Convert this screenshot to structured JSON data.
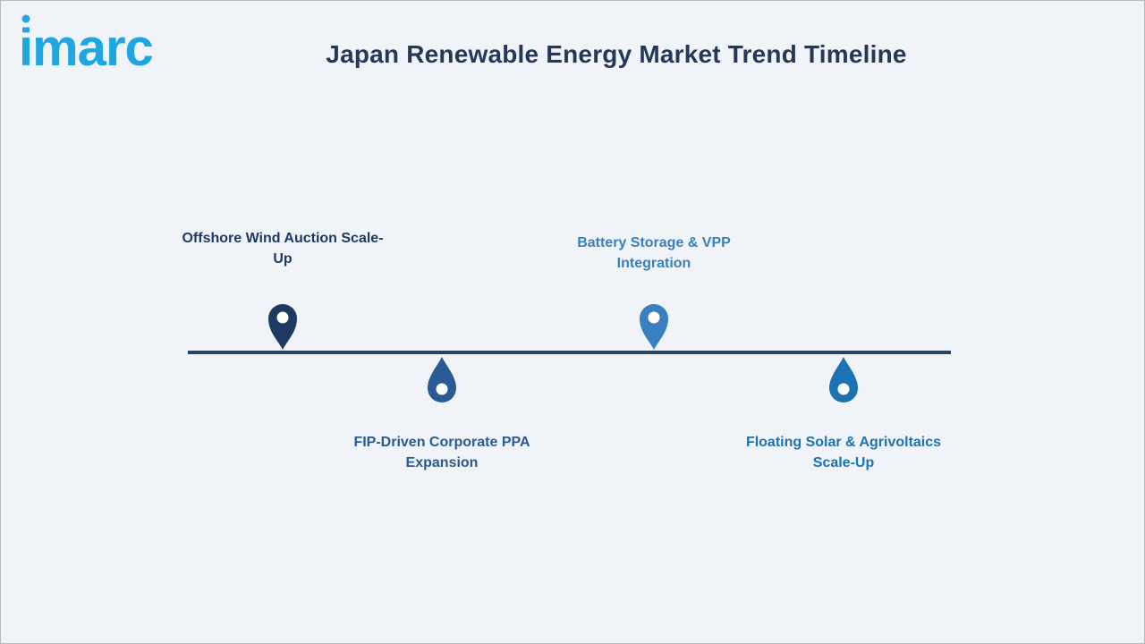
{
  "logo": {
    "text": "imarc",
    "color": "#1fa6e0"
  },
  "title": "Japan Renewable Energy Market Trend Timeline",
  "timeline": {
    "line_color": "#27435f",
    "milestones": [
      {
        "label": "Offshore Wind Auction Scale-Up",
        "color": "#1e3a63",
        "position": "above",
        "icon": "map-pin-icon"
      },
      {
        "label": "FIP-Driven Corporate PPA Expansion",
        "color": "#2a5a93",
        "position": "below",
        "icon": "drop-pin-icon"
      },
      {
        "label": "Battery Storage & VPP Integration",
        "color": "#3a7fbf",
        "position": "above",
        "icon": "map-pin-icon"
      },
      {
        "label": "Floating Solar & Agrivoltaics Scale-Up",
        "color": "#1b73b4",
        "position": "below",
        "icon": "drop-pin-icon"
      }
    ]
  }
}
